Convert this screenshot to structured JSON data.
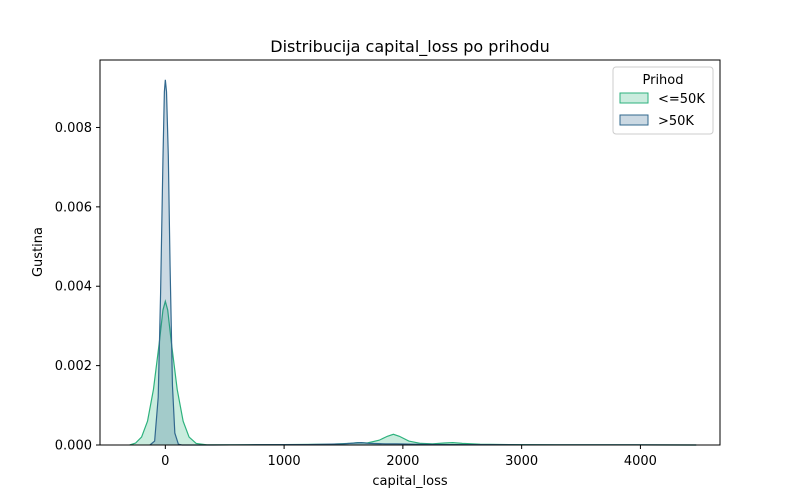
{
  "chart_data": {
    "type": "area",
    "title": "Distribucija capital_loss po prihodu",
    "xlabel": "capital_loss",
    "ylabel": "Gustina",
    "xlim": [
      -550,
      4670
    ],
    "ylim": [
      0,
      0.0097
    ],
    "x_ticks": [
      0,
      1000,
      2000,
      3000,
      4000
    ],
    "x_tick_labels": [
      "0",
      "1000",
      "2000",
      "3000",
      "4000"
    ],
    "y_ticks": [
      0,
      0.002,
      0.004,
      0.006,
      0.008
    ],
    "y_tick_labels": [
      "0.000",
      "0.002",
      "0.004",
      "0.006",
      "0.008"
    ],
    "grid": false,
    "legend": {
      "title": "Prihod",
      "placement": "top-right"
    },
    "series": [
      {
        "name": "<=50K",
        "color": "#2db27d",
        "points": [
          [
            -300,
            0
          ],
          [
            -250,
            5e-05
          ],
          [
            -200,
            0.0002
          ],
          [
            -150,
            0.0006
          ],
          [
            -100,
            0.0014
          ],
          [
            -50,
            0.0026
          ],
          [
            -20,
            0.0034
          ],
          [
            0,
            0.00362
          ],
          [
            20,
            0.0034
          ],
          [
            50,
            0.0026
          ],
          [
            100,
            0.0014
          ],
          [
            150,
            0.0006
          ],
          [
            200,
            0.0002
          ],
          [
            260,
            4e-05
          ],
          [
            350,
            5e-06
          ],
          [
            600,
            5e-06
          ],
          [
            1000,
            1e-05
          ],
          [
            1400,
            2e-05
          ],
          [
            1550,
            4e-05
          ],
          [
            1620,
            6e-05
          ],
          [
            1700,
            5e-05
          ],
          [
            1800,
            0.00012
          ],
          [
            1870,
            0.00022
          ],
          [
            1920,
            0.00027
          ],
          [
            1970,
            0.00022
          ],
          [
            2050,
            0.0001
          ],
          [
            2150,
            4e-05
          ],
          [
            2250,
            3e-05
          ],
          [
            2350,
            5e-05
          ],
          [
            2420,
            6e-05
          ],
          [
            2500,
            4e-05
          ],
          [
            2650,
            2e-05
          ],
          [
            2900,
            1e-05
          ],
          [
            3300,
            5e-06
          ],
          [
            3800,
            5e-06
          ],
          [
            4470,
            0
          ]
        ]
      },
      {
        "name": ">50K",
        "color": "#31688e",
        "points": [
          [
            -130,
            0
          ],
          [
            -90,
            0.0001
          ],
          [
            -60,
            0.0012
          ],
          [
            -40,
            0.0038
          ],
          [
            -20,
            0.0072
          ],
          [
            -8,
            0.0089
          ],
          [
            0,
            0.0092
          ],
          [
            10,
            0.0089
          ],
          [
            25,
            0.0073
          ],
          [
            40,
            0.0045
          ],
          [
            60,
            0.0015
          ],
          [
            80,
            0.0003
          ],
          [
            110,
            2e-05
          ],
          [
            140,
            0
          ],
          [
            400,
            0
          ],
          [
            700,
            5e-06
          ],
          [
            1200,
            1e-05
          ],
          [
            1500,
            3e-05
          ],
          [
            1600,
            5e-05
          ],
          [
            1650,
            6e-05
          ],
          [
            1720,
            4e-05
          ],
          [
            1850,
            3e-05
          ],
          [
            1950,
            3e-05
          ],
          [
            2100,
            2e-05
          ],
          [
            2400,
            1e-05
          ],
          [
            3000,
            5e-06
          ],
          [
            3500,
            5e-06
          ],
          [
            4470,
            0
          ]
        ]
      }
    ]
  }
}
